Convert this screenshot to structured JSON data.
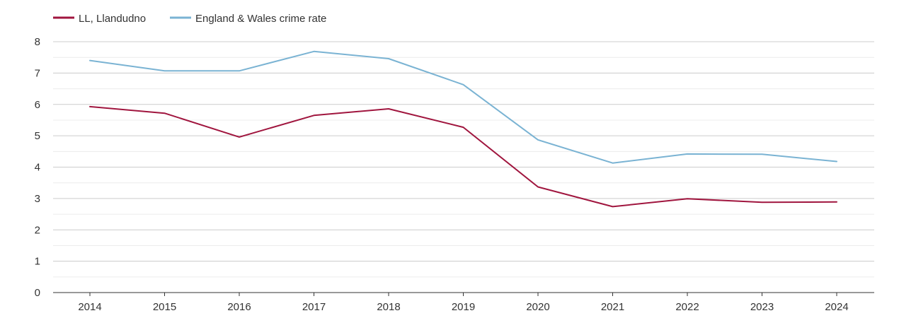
{
  "chart_data": {
    "type": "line",
    "title": "",
    "xlabel": "",
    "ylabel": "",
    "categories": [
      "2014",
      "2015",
      "2016",
      "2017",
      "2018",
      "2019",
      "2020",
      "2021",
      "2022",
      "2023",
      "2024"
    ],
    "series": [
      {
        "name": "LL, Llandudno",
        "color": "#a0153e",
        "values": [
          5.93,
          5.72,
          4.96,
          5.65,
          5.86,
          5.27,
          3.37,
          2.74,
          2.99,
          2.88,
          2.89
        ]
      },
      {
        "name": "England & Wales crime rate",
        "color": "#7ab3d3",
        "values": [
          7.4,
          7.07,
          7.07,
          7.69,
          7.46,
          6.63,
          4.87,
          4.13,
          4.42,
          4.41,
          4.18
        ]
      }
    ],
    "ylim": [
      0,
      8
    ],
    "yticks": [
      0,
      1,
      2,
      3,
      4,
      5,
      6,
      7,
      8
    ],
    "grid": true,
    "legend_position": "top-left"
  }
}
